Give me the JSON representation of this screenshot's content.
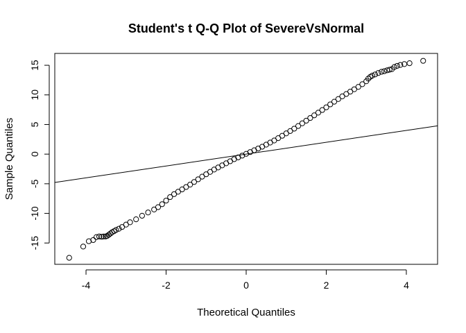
{
  "chart_data": {
    "type": "scatter",
    "title": "Student's t Q-Q Plot of SevereVsNormal",
    "xlabel": "Theoretical Quantiles",
    "ylabel": "Sample Quantiles",
    "xlim": [
      -4.78,
      4.78
    ],
    "ylim": [
      -18.6,
      17.0
    ],
    "x_ticks": [
      -4,
      -2,
      0,
      2,
      4
    ],
    "y_ticks": [
      -15,
      -10,
      -5,
      0,
      5,
      10,
      15
    ],
    "grid": false,
    "legend": "none",
    "point_style": "open-circle",
    "colors": {
      "points": "#000000",
      "line": "#000000",
      "axes": "#000000",
      "background": "#ffffff"
    },
    "reference_line": {
      "slope": 1.0,
      "intercept": 0.0
    },
    "points": [
      [
        -4.42,
        -17.5
      ],
      [
        -4.07,
        -15.6
      ],
      [
        -3.93,
        -14.7
      ],
      [
        -3.82,
        -14.5
      ],
      [
        -3.74,
        -14.0
      ],
      [
        -3.67,
        -13.9
      ],
      [
        -3.61,
        -13.95
      ],
      [
        -3.56,
        -13.9
      ],
      [
        -3.51,
        -13.9
      ],
      [
        -3.47,
        -13.8
      ],
      [
        -3.43,
        -13.6
      ],
      [
        -3.39,
        -13.4
      ],
      [
        -3.35,
        -13.2
      ],
      [
        -3.3,
        -13.0
      ],
      [
        -3.25,
        -12.8
      ],
      [
        -3.18,
        -12.6
      ],
      [
        -3.1,
        -12.3
      ],
      [
        -3.0,
        -11.9
      ],
      [
        -2.9,
        -11.5
      ],
      [
        -2.75,
        -11.0
      ],
      [
        -2.6,
        -10.4
      ],
      [
        -2.45,
        -9.85
      ],
      [
        -2.3,
        -9.35
      ],
      [
        -2.2,
        -8.95
      ],
      [
        -2.1,
        -8.45
      ],
      [
        -2.0,
        -7.85
      ],
      [
        -1.9,
        -7.25
      ],
      [
        -1.8,
        -6.75
      ],
      [
        -1.7,
        -6.35
      ],
      [
        -1.6,
        -5.95
      ],
      [
        -1.5,
        -5.55
      ],
      [
        -1.4,
        -5.15
      ],
      [
        -1.3,
        -4.7
      ],
      [
        -1.2,
        -4.25
      ],
      [
        -1.1,
        -3.8
      ],
      [
        -1.0,
        -3.4
      ],
      [
        -0.9,
        -3.0
      ],
      [
        -0.8,
        -2.6
      ],
      [
        -0.7,
        -2.25
      ],
      [
        -0.6,
        -1.9
      ],
      [
        -0.5,
        -1.55
      ],
      [
        -0.4,
        -1.2
      ],
      [
        -0.3,
        -0.85
      ],
      [
        -0.2,
        -0.55
      ],
      [
        -0.1,
        -0.25
      ],
      [
        0.0,
        0.05
      ],
      [
        0.1,
        0.35
      ],
      [
        0.2,
        0.65
      ],
      [
        0.3,
        0.95
      ],
      [
        0.4,
        1.25
      ],
      [
        0.5,
        1.6
      ],
      [
        0.6,
        1.95
      ],
      [
        0.7,
        2.3
      ],
      [
        0.8,
        2.7
      ],
      [
        0.9,
        3.1
      ],
      [
        1.0,
        3.5
      ],
      [
        1.1,
        3.9
      ],
      [
        1.2,
        4.3
      ],
      [
        1.3,
        4.75
      ],
      [
        1.4,
        5.2
      ],
      [
        1.5,
        5.65
      ],
      [
        1.6,
        6.1
      ],
      [
        1.7,
        6.55
      ],
      [
        1.8,
        7.0
      ],
      [
        1.9,
        7.45
      ],
      [
        2.0,
        7.9
      ],
      [
        2.1,
        8.4
      ],
      [
        2.2,
        8.85
      ],
      [
        2.3,
        9.3
      ],
      [
        2.4,
        9.75
      ],
      [
        2.5,
        10.15
      ],
      [
        2.6,
        10.55
      ],
      [
        2.7,
        10.95
      ],
      [
        2.8,
        11.35
      ],
      [
        2.9,
        11.8
      ],
      [
        3.0,
        12.3
      ],
      [
        3.05,
        12.75
      ],
      [
        3.1,
        13.05
      ],
      [
        3.15,
        13.25
      ],
      [
        3.22,
        13.45
      ],
      [
        3.3,
        13.7
      ],
      [
        3.38,
        13.9
      ],
      [
        3.45,
        14.0
      ],
      [
        3.52,
        14.15
      ],
      [
        3.58,
        14.25
      ],
      [
        3.64,
        14.35
      ],
      [
        3.7,
        14.7
      ],
      [
        3.77,
        14.9
      ],
      [
        3.85,
        15.05
      ],
      [
        3.95,
        15.2
      ],
      [
        4.08,
        15.35
      ],
      [
        4.42,
        15.75
      ]
    ]
  }
}
